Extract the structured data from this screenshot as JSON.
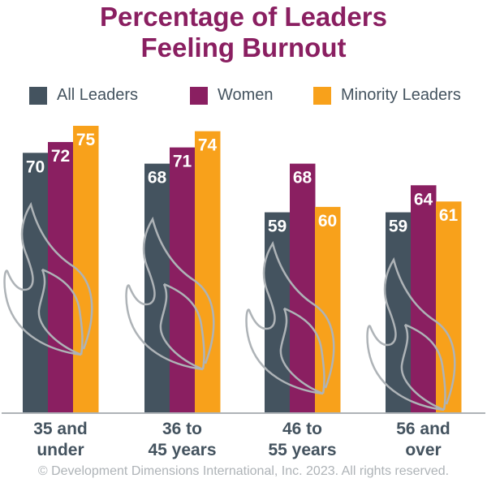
{
  "chart_data": {
    "type": "bar",
    "title": "Percentage of Leaders Feeling Burnout",
    "title_lines": [
      "Percentage of Leaders",
      "Feeling Burnout"
    ],
    "categories": [
      [
        "35 and",
        "under"
      ],
      [
        "36 to",
        "45 years"
      ],
      [
        "46 to",
        "55 years"
      ],
      [
        "56 and",
        "over"
      ]
    ],
    "series": [
      {
        "name": "All Leaders",
        "color": "#44535f",
        "values": [
          70,
          68,
          59,
          59
        ]
      },
      {
        "name": "Women",
        "color": "#8a1f61",
        "values": [
          72,
          71,
          68,
          64
        ]
      },
      {
        "name": "Minority Leaders",
        "color": "#f8a11b",
        "values": [
          75,
          74,
          60,
          61
        ]
      }
    ],
    "ylim": [
      22,
      75
    ],
    "grid": false,
    "legend": "top",
    "data_labels": true,
    "background_icon": "flame-icon"
  },
  "footer": "© Development Dimensions International, Inc. 2023. All rights reserved."
}
